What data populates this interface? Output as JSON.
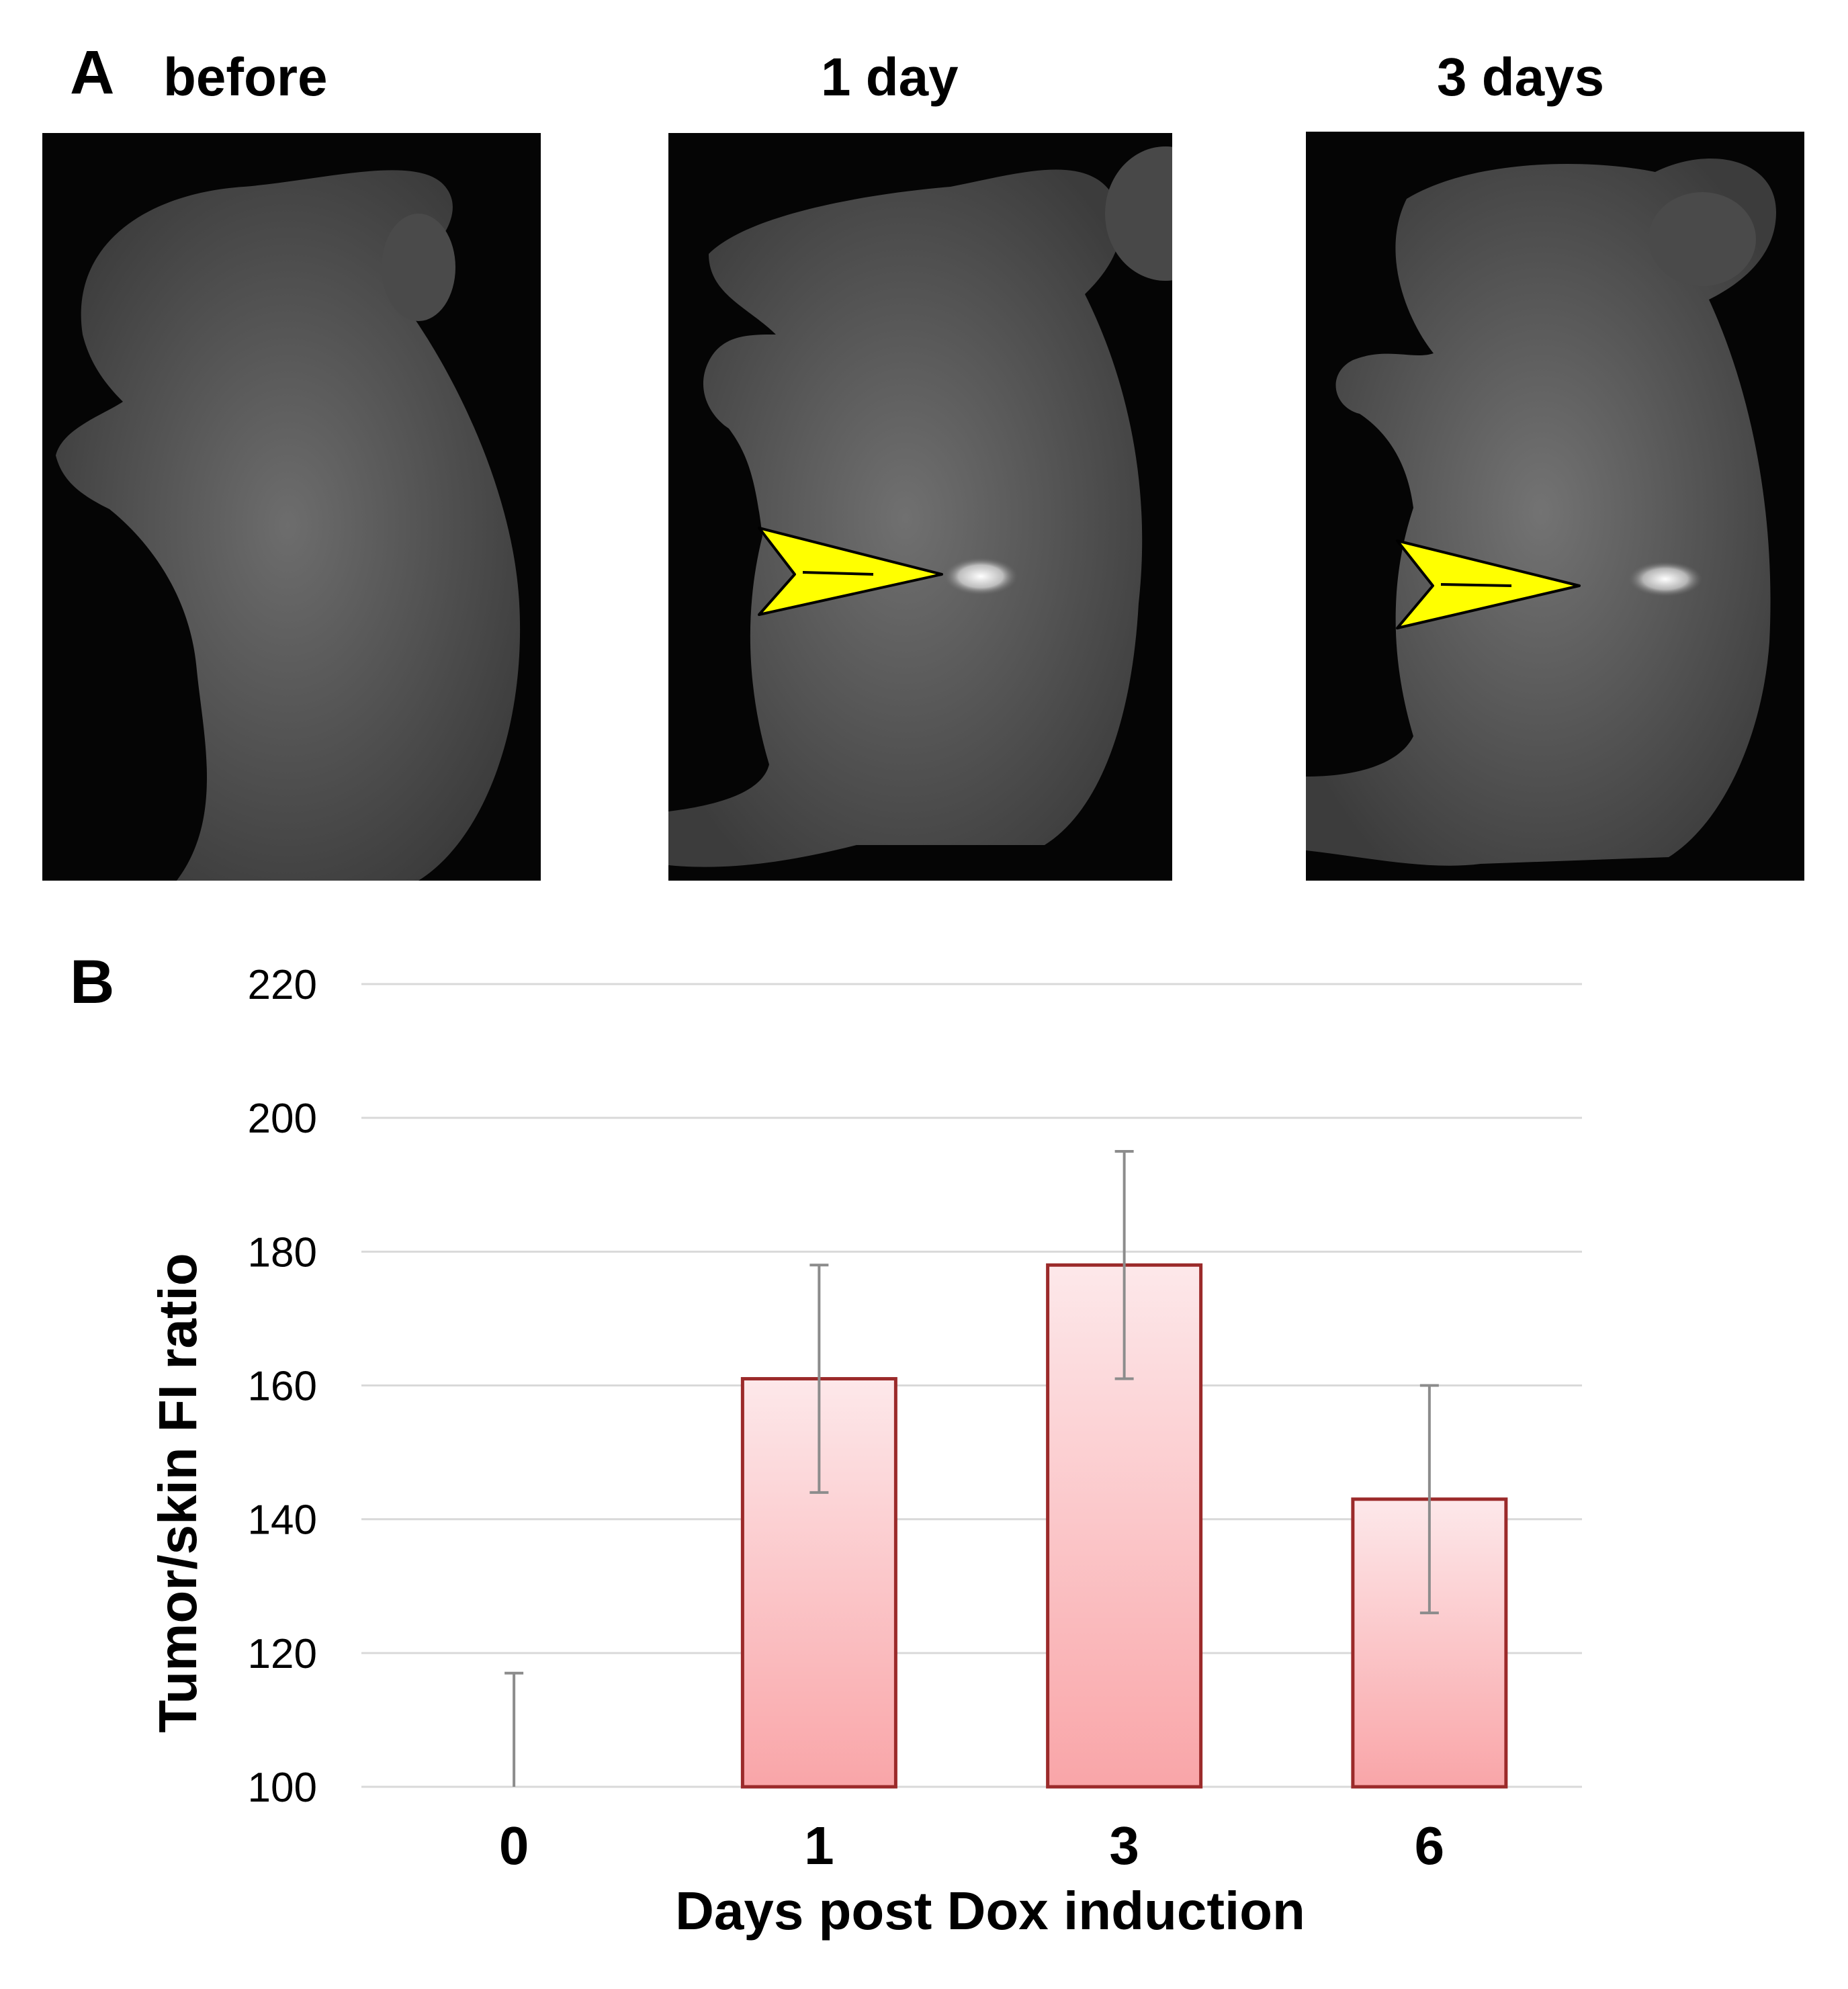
{
  "panel_a": {
    "letter": "A",
    "photos": [
      {
        "title": "before",
        "arrow": false
      },
      {
        "title": "1 day",
        "arrow": true
      },
      {
        "title": "3 days",
        "arrow": true
      }
    ],
    "arrow_color": "#ffff00"
  },
  "chart_data": {
    "panel_letter": "B",
    "type": "bar",
    "categories": [
      "0",
      "1",
      "3",
      "6"
    ],
    "values": [
      100,
      161,
      178,
      143
    ],
    "error": [
      17,
      17,
      17,
      17
    ],
    "ylabel": "Tumor/skin FI ratio",
    "xlabel": "Days post Dox induction",
    "ylim": [
      100,
      220
    ],
    "yticks": [
      100,
      120,
      140,
      160,
      180,
      200,
      220
    ],
    "grid": true,
    "bar_fill_top": "#fde8ea",
    "bar_fill_bottom": "#f9a5a8",
    "bar_edge": "#9b2a2a",
    "error_bar_color": "#8c8c8c",
    "grid_color": "#d9d9d9"
  }
}
